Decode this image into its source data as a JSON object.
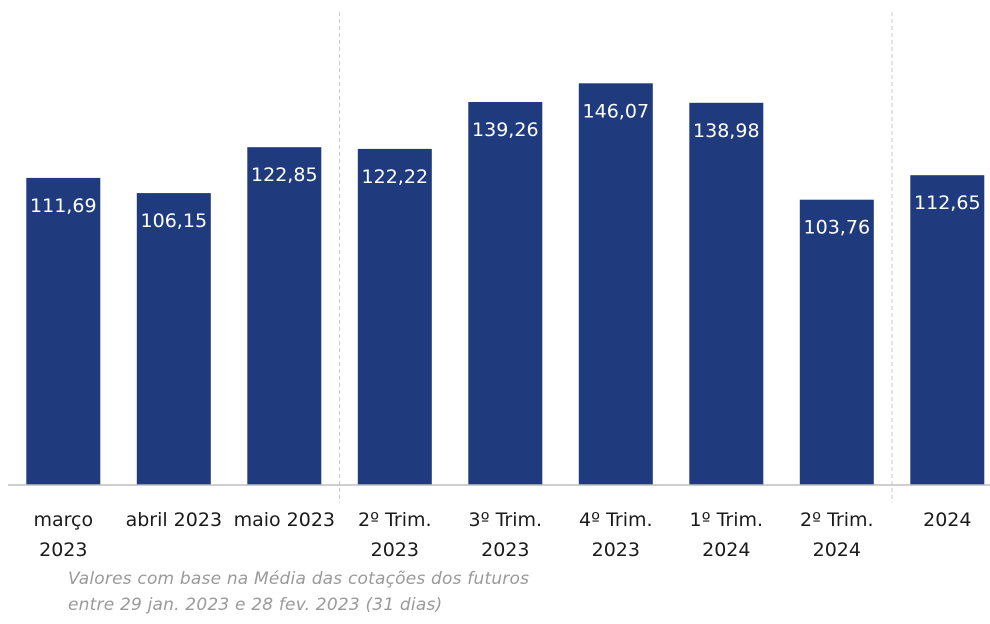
{
  "chart_data": {
    "type": "bar",
    "categories": [
      [
        "março",
        "2023"
      ],
      [
        "abril 2023"
      ],
      [
        "maio 2023"
      ],
      [
        "2º Trim.",
        "2023"
      ],
      [
        "3º Trim.",
        "2023"
      ],
      [
        "4º Trim.",
        "2023"
      ],
      [
        "1º Trim.",
        "2024"
      ],
      [
        "2º Trim.",
        "2024"
      ],
      [
        "2024"
      ]
    ],
    "values": [
      111.69,
      106.15,
      122.85,
      122.22,
      139.26,
      146.07,
      138.98,
      103.76,
      112.65
    ],
    "data_labels": [
      "111,69",
      "106,15",
      "122,85",
      "122,22",
      "139,26",
      "146,07",
      "138,98",
      "103,76",
      "112,65"
    ],
    "ylim": [
      0,
      150
    ],
    "y_axis_visible": false,
    "grid": false,
    "group_separators_after_index": [
      2,
      7
    ],
    "bar_color": "#1f3a7d",
    "separator_color": "#c8c8c8",
    "title": "",
    "xlabel": "",
    "ylabel": ""
  },
  "footnote": {
    "line1": "Valores com base na Média das cotações dos futuros",
    "line2": "entre 29 jan. 2023 e 28 fev. 2023 (31 dias)"
  }
}
